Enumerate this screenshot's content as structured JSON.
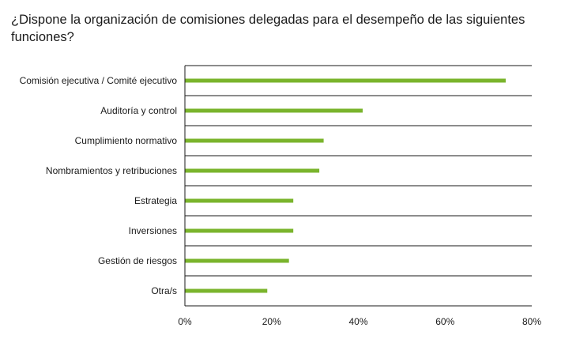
{
  "chart_data": {
    "type": "bar",
    "orientation": "horizontal",
    "title": "¿Dispone la organización de comisiones delegadas para el desempeño de las siguientes funciones?",
    "categories": [
      "Comisión ejecutiva / Comité ejecutivo",
      "Auditoría y control",
      "Cumplimiento normativo",
      "Nombramientos y retribuciones",
      "Estrategia",
      "Inversiones",
      "Gestión de riesgos",
      "Otra/s"
    ],
    "values": [
      74,
      41,
      32,
      31,
      25,
      25,
      24,
      19
    ],
    "xlim": [
      0,
      80
    ],
    "x_ticks": [
      0,
      20,
      40,
      60,
      80
    ],
    "x_tick_labels": [
      "0%",
      "20%",
      "40%",
      "60%",
      "80%"
    ],
    "xlabel": "",
    "ylabel": "",
    "grid": "horizontal separators between categories",
    "legend": "none",
    "bar_color": "#7ab42c",
    "axis_color": "#1a1a1a"
  }
}
